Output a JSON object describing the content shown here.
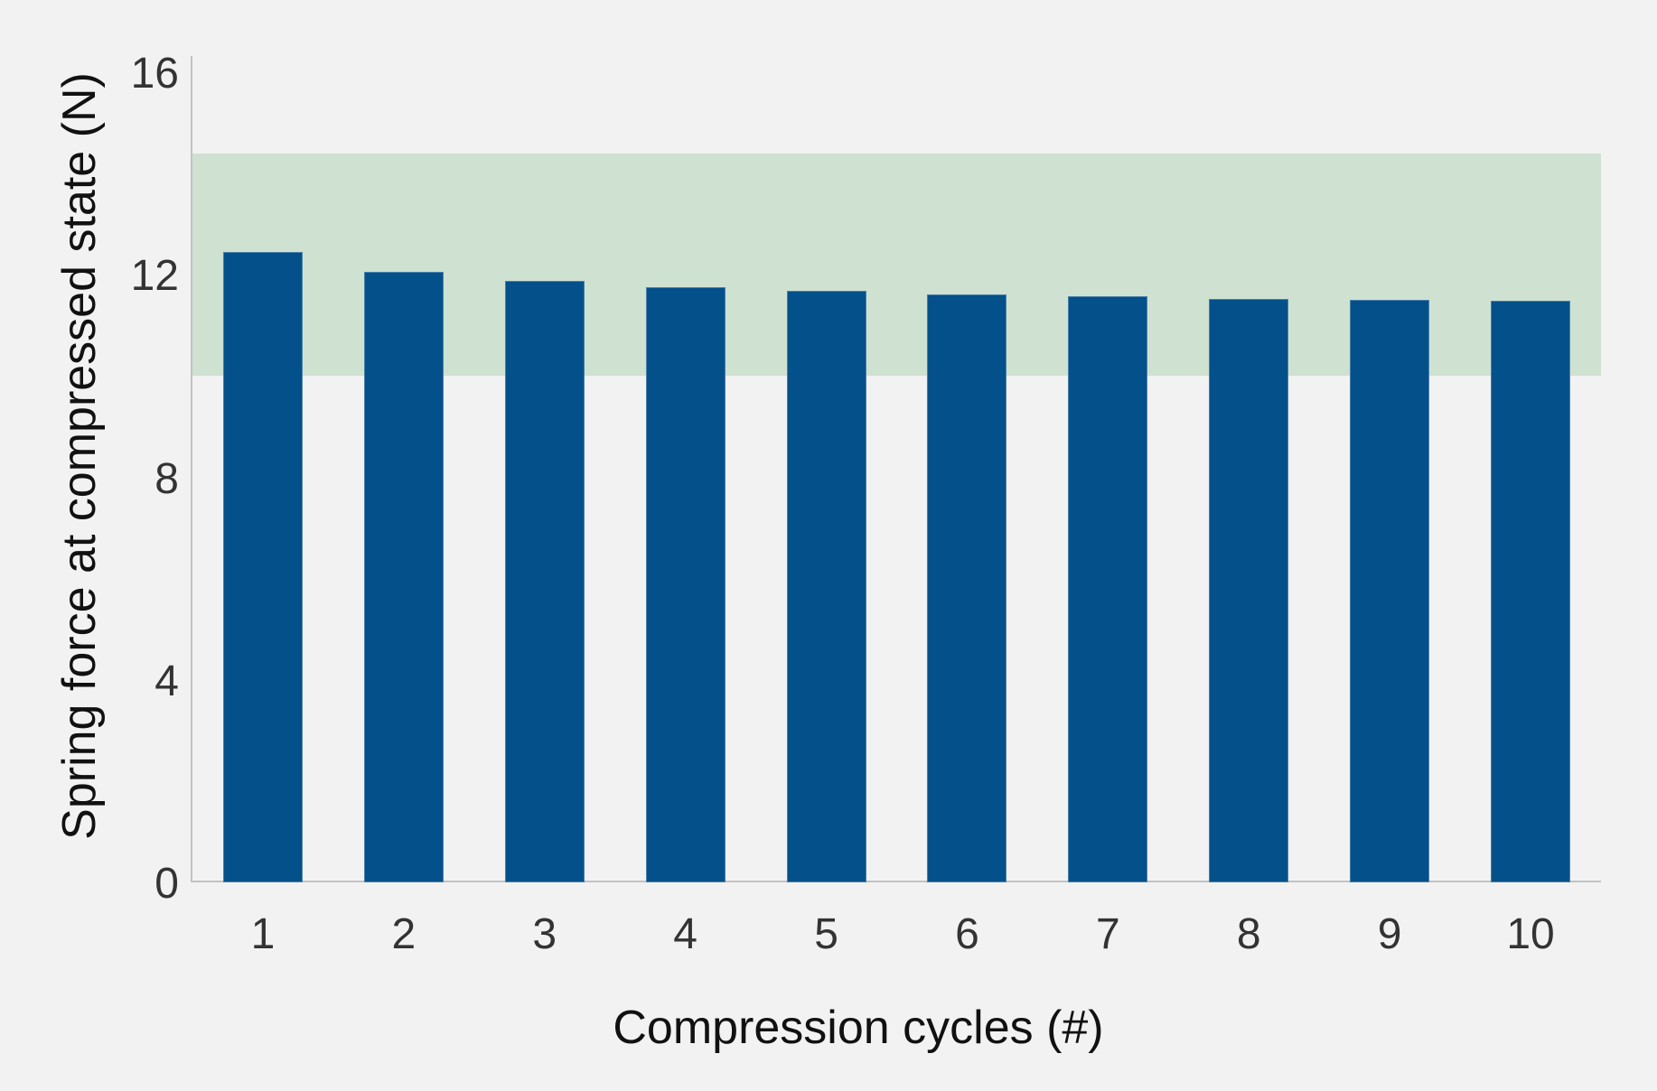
{
  "figure": {
    "background_color": "#f2f2f2"
  },
  "chart_data": {
    "type": "bar",
    "title": "",
    "xlabel": "Compression cycles (#)",
    "ylabel": "Spring force at compressed state (N)",
    "categories": [
      "1",
      "2",
      "3",
      "4",
      "5",
      "6",
      "7",
      "8",
      "9",
      "10"
    ],
    "values": [
      12.45,
      12.05,
      11.88,
      11.76,
      11.68,
      11.62,
      11.57,
      11.53,
      11.5,
      11.48
    ],
    "series_name": "Spring force",
    "ylim": [
      0,
      16
    ],
    "yticks": [
      0,
      4,
      8,
      12,
      16
    ],
    "grid": false,
    "legend": false,
    "bar_color": "#04508a",
    "reference_band": {
      "from": 10,
      "to": 14.4,
      "color": "#cfe1d1"
    },
    "axis_line_color": "#c2c2c2",
    "tick_label_color": "#333333",
    "axis_title_color": "#111111"
  }
}
